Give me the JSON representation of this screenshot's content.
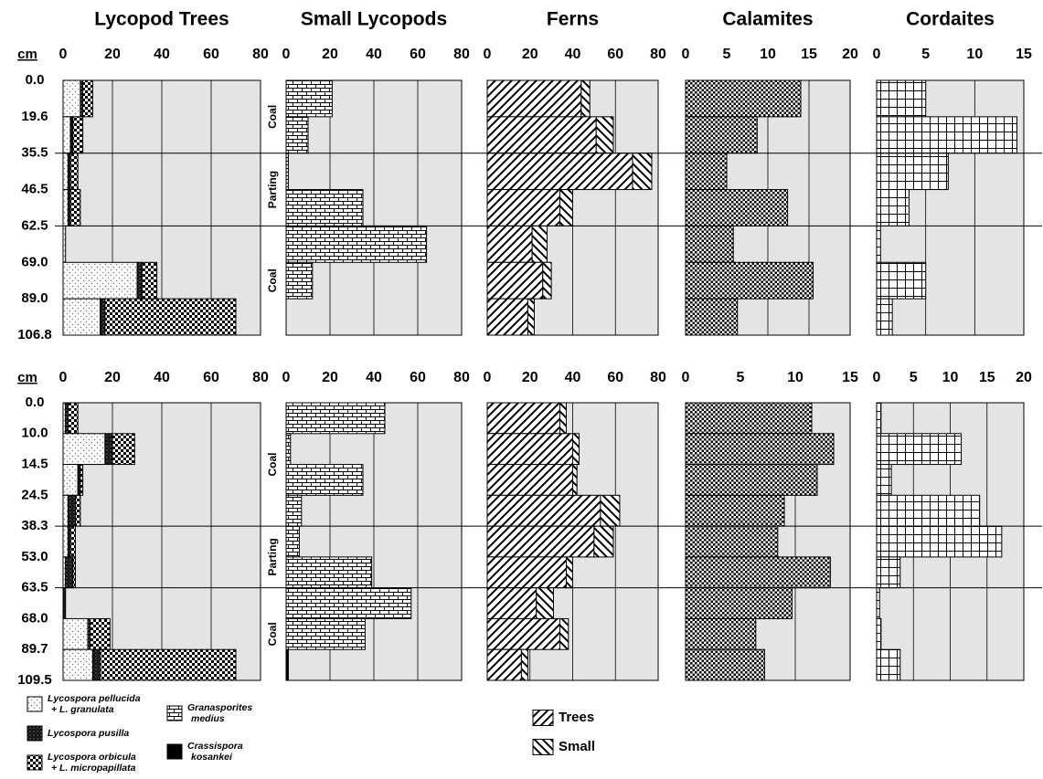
{
  "chart_data": {
    "type": "bar",
    "orientation": "horizontal",
    "panels": [
      {
        "title": "Lycopod Trees",
        "series": [
          {
            "name": [
              "Lycospora pellucida",
              "+ L. granulata"
            ],
            "pattern": "dots"
          },
          {
            "name": [
              "Lycospora pusilla"
            ],
            "pattern": "speckle"
          },
          {
            "name": [
              "Lycospora orbicula",
              "+ L. micropapillata"
            ],
            "pattern": "checker"
          }
        ]
      },
      {
        "title": "Small Lycopods",
        "series": [
          {
            "name": [
              "Granasporites",
              "medius"
            ],
            "pattern": "brick"
          },
          {
            "name": [
              "Crassispora",
              "kosankei"
            ],
            "pattern": "solid"
          }
        ]
      },
      {
        "title": "Ferns",
        "series": [
          {
            "name": [
              "Trees"
            ],
            "pattern": "hatch-fwd"
          },
          {
            "name": [
              "Small"
            ],
            "pattern": "hatch-back"
          }
        ]
      },
      {
        "title": "Calamites",
        "series": [
          {
            "pattern": "checker-dense"
          }
        ]
      },
      {
        "title": "Cordaites",
        "series": [
          {
            "pattern": "grid"
          }
        ]
      }
    ],
    "sections": [
      {
        "y_label": "cm",
        "bins": [
          {
            "value": 0,
            "label": "0.0"
          },
          19.6,
          35.5,
          46.5,
          62.5,
          {
            "value": 69,
            "label": "69.0"
          },
          {
            "value": 89,
            "label": "89.0"
          },
          106.8
        ],
        "units": [
          "Coal",
          "Parting",
          "Coal"
        ],
        "unit_bounds": [
          {
            "value": 0,
            "label": "0.0"
          },
          35.5,
          62.5,
          106.8
        ],
        "panels": [
          {
            "xlim": [
              0,
              80
            ],
            "xticks": [
              0,
              20,
              40,
              60,
              80
            ],
            "values": [
              [
                7,
                3,
                2,
                2,
                1,
                30,
                15
              ],
              [
                1,
                1,
                1,
                1,
                0,
                2,
                2
              ],
              [
                4,
                4,
                3,
                4,
                0,
                6,
                53
              ]
            ]
          },
          {
            "xlim": [
              0,
              80
            ],
            "xticks": [
              0,
              20,
              40,
              60,
              80
            ],
            "values": [
              [
                21,
                10,
                1,
                35,
                64,
                12,
                0
              ],
              [
                0,
                0,
                0,
                0,
                0,
                0,
                0
              ]
            ]
          },
          {
            "xlim": [
              0,
              80
            ],
            "xticks": [
              0,
              20,
              40,
              60,
              80
            ],
            "values": [
              [
                44,
                51,
                68,
                34,
                21,
                26,
                19
              ],
              [
                4,
                8,
                9,
                6,
                7,
                4,
                3
              ]
            ]
          },
          {
            "xlim": [
              0,
              20
            ],
            "xticks": [
              0,
              5,
              10,
              15,
              20
            ],
            "values": [
              [
                14,
                8.7,
                5,
                12.4,
                5.8,
                15.5,
                6.3
              ]
            ]
          },
          {
            "xlim": [
              0,
              15
            ],
            "xticks": [
              0,
              5,
              10,
              15
            ],
            "values": [
              [
                5,
                14.3,
                7.3,
                3.3,
                0.4,
                5,
                1.6
              ]
            ]
          }
        ]
      },
      {
        "y_label": "cm",
        "bins": [
          {
            "value": 0,
            "label": "0.0"
          },
          {
            "value": 10,
            "label": "10.0"
          },
          14.5,
          24.5,
          38.3,
          {
            "value": 53,
            "label": "53.0"
          },
          63.5,
          {
            "value": 68,
            "label": "68.0"
          },
          89.7,
          109.5
        ],
        "units": [
          "Coal",
          "Parting",
          "Coal"
        ],
        "unit_bounds": [
          {
            "value": 0,
            "label": "0.0"
          },
          38.3,
          63.5,
          109.5
        ],
        "panels": [
          {
            "xlim": [
              0,
              80
            ],
            "xticks": [
              0,
              20,
              40,
              60,
              80
            ],
            "values": [
              [
                1,
                17,
                6,
                2,
                2,
                1,
                0,
                10,
                12
              ],
              [
                1,
                3,
                1,
                3,
                1,
                3,
                1,
                1,
                3
              ],
              [
                4,
                9,
                1,
                2,
                2,
                1,
                0,
                8,
                55
              ]
            ]
          },
          {
            "xlim": [
              0,
              80
            ],
            "xticks": [
              0,
              20,
              40,
              60,
              80
            ],
            "values": [
              [
                45,
                2,
                35,
                7,
                6,
                39,
                57,
                36,
                0
              ],
              [
                0,
                0,
                0,
                0,
                0,
                0,
                0,
                0,
                1
              ]
            ]
          },
          {
            "xlim": [
              0,
              80
            ],
            "xticks": [
              0,
              20,
              40,
              60,
              80
            ],
            "values": [
              [
                34,
                40,
                40,
                53,
                50,
                37,
                23,
                34,
                16
              ],
              [
                3,
                3,
                2,
                9,
                9,
                3,
                8,
                4,
                3
              ]
            ]
          },
          {
            "xlim": [
              0,
              15
            ],
            "xticks": [
              0,
              5,
              10,
              15
            ],
            "values": [
              [
                11.5,
                13.5,
                12,
                9,
                8.4,
                13.2,
                9.7,
                6.4,
                7.2
              ]
            ]
          },
          {
            "xlim": [
              0,
              20
            ],
            "xticks": [
              0,
              5,
              10,
              15,
              20
            ],
            "values": [
              [
                0.6,
                11.5,
                2,
                14,
                17,
                3.2,
                0.4,
                0.6,
                3.2
              ]
            ]
          }
        ]
      }
    ]
  }
}
